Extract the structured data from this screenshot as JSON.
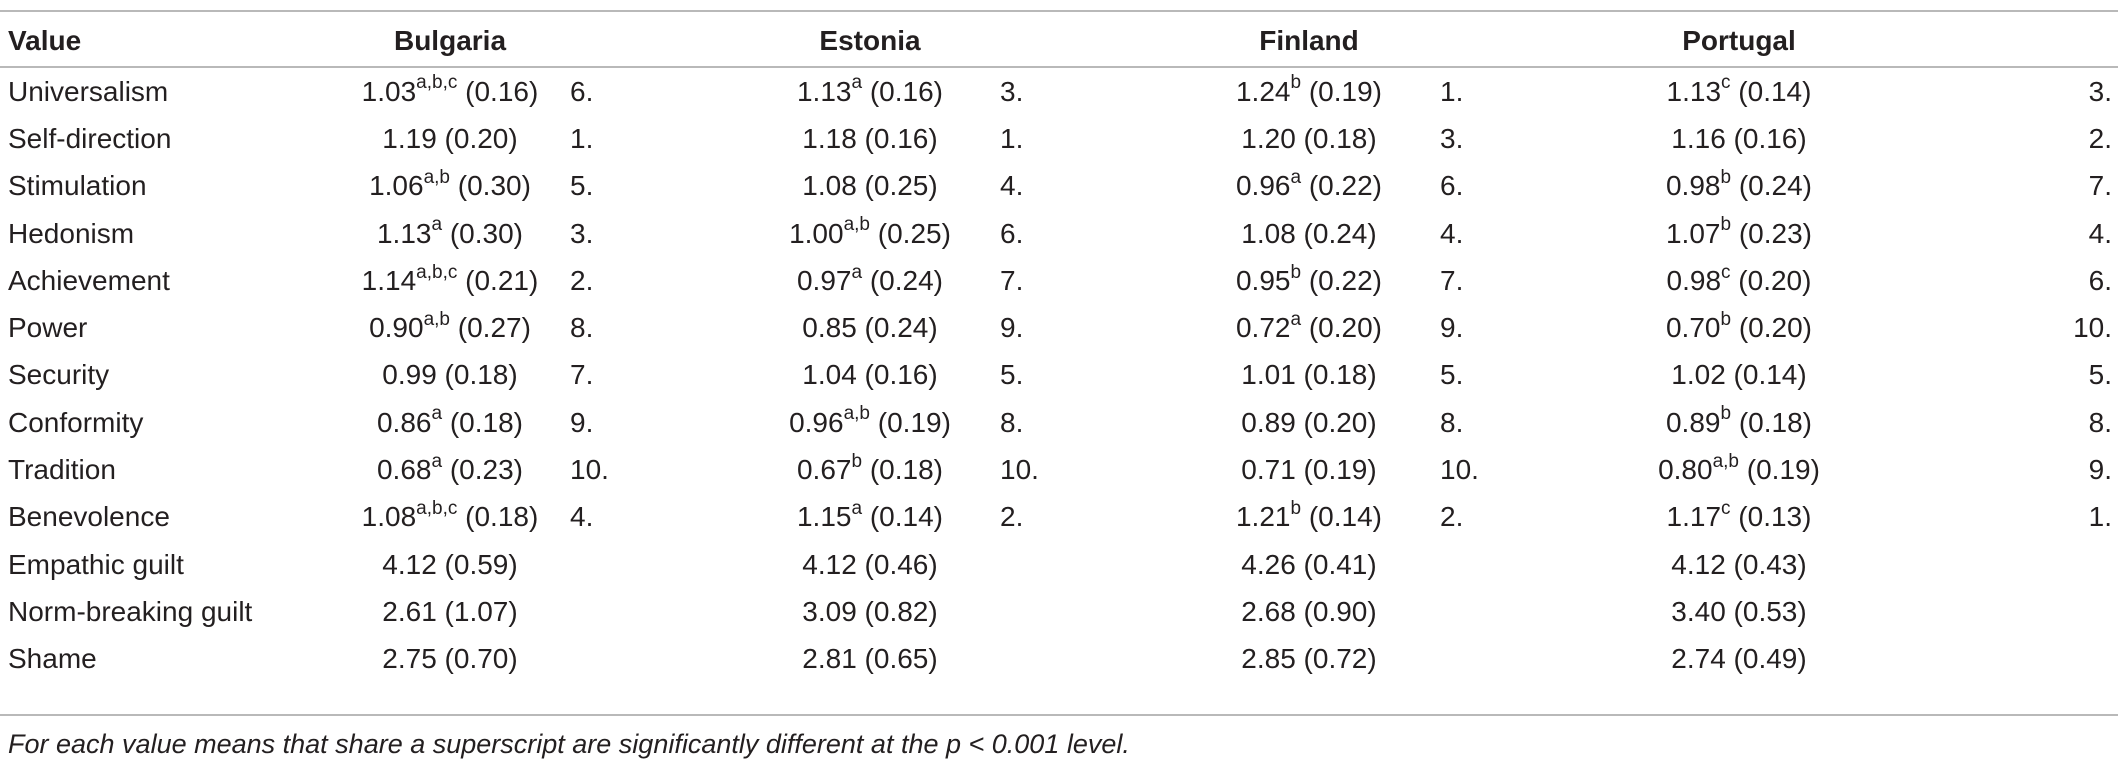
{
  "table": {
    "header": {
      "value": "Value",
      "countries": [
        "Bulgaria",
        "Estonia",
        "Finland",
        "Portugal"
      ]
    },
    "rows": [
      {
        "label": "Universalism",
        "cells": [
          {
            "mean": "1.03",
            "sup": "a,b,c",
            "sd": " (0.16)",
            "rank": "6."
          },
          {
            "mean": "1.13",
            "sup": "a",
            "sd": " (0.16)",
            "rank": "3."
          },
          {
            "mean": "1.24",
            "sup": "b",
            "sd": " (0.19)",
            "rank": "1."
          },
          {
            "mean": "1.13",
            "sup": "c",
            "sd": " (0.14)",
            "rank": "3."
          }
        ]
      },
      {
        "label": "Self-direction",
        "cells": [
          {
            "mean": "1.19",
            "sup": "",
            "sd": " (0.20)",
            "rank": "1."
          },
          {
            "mean": "1.18",
            "sup": "",
            "sd": " (0.16)",
            "rank": "1."
          },
          {
            "mean": "1.20",
            "sup": "",
            "sd": " (0.18)",
            "rank": "3."
          },
          {
            "mean": "1.16",
            "sup": "",
            "sd": " (0.16)",
            "rank": "2."
          }
        ]
      },
      {
        "label": "Stimulation",
        "cells": [
          {
            "mean": "1.06",
            "sup": "a,b",
            "sd": " (0.30)",
            "rank": "5."
          },
          {
            "mean": "1.08",
            "sup": "",
            "sd": " (0.25)",
            "rank": "4."
          },
          {
            "mean": "0.96",
            "sup": "a",
            "sd": " (0.22)",
            "rank": "6."
          },
          {
            "mean": "0.98",
            "sup": "b",
            "sd": " (0.24)",
            "rank": "7."
          }
        ]
      },
      {
        "label": "Hedonism",
        "cells": [
          {
            "mean": "1.13",
            "sup": "a",
            "sd": " (0.30)",
            "rank": "3."
          },
          {
            "mean": "1.00",
            "sup": "a,b",
            "sd": " (0.25)",
            "rank": "6."
          },
          {
            "mean": "1.08",
            "sup": "",
            "sd": " (0.24)",
            "rank": "4."
          },
          {
            "mean": "1.07",
            "sup": "b",
            "sd": " (0.23)",
            "rank": "4."
          }
        ]
      },
      {
        "label": "Achievement",
        "cells": [
          {
            "mean": "1.14",
            "sup": "a,b,c",
            "sd": " (0.21)",
            "rank": "2."
          },
          {
            "mean": "0.97",
            "sup": "a",
            "sd": " (0.24)",
            "rank": "7."
          },
          {
            "mean": "0.95",
            "sup": "b",
            "sd": " (0.22)",
            "rank": "7."
          },
          {
            "mean": "0.98",
            "sup": "c",
            "sd": " (0.20)",
            "rank": "6."
          }
        ]
      },
      {
        "label": "Power",
        "cells": [
          {
            "mean": "0.90",
            "sup": "a,b",
            "sd": " (0.27)",
            "rank": "8."
          },
          {
            "mean": "0.85",
            "sup": "",
            "sd": " (0.24)",
            "rank": "9."
          },
          {
            "mean": "0.72",
            "sup": "a",
            "sd": " (0.20)",
            "rank": "9."
          },
          {
            "mean": "0.70",
            "sup": "b",
            "sd": " (0.20)",
            "rank": "10."
          }
        ]
      },
      {
        "label": "Security",
        "cells": [
          {
            "mean": "0.99",
            "sup": "",
            "sd": " (0.18)",
            "rank": "7."
          },
          {
            "mean": "1.04",
            "sup": "",
            "sd": " (0.16)",
            "rank": "5."
          },
          {
            "mean": "1.01",
            "sup": "",
            "sd": " (0.18)",
            "rank": "5."
          },
          {
            "mean": "1.02",
            "sup": "",
            "sd": " (0.14)",
            "rank": "5."
          }
        ]
      },
      {
        "label": "Conformity",
        "cells": [
          {
            "mean": "0.86",
            "sup": "a",
            "sd": " (0.18)",
            "rank": "9."
          },
          {
            "mean": "0.96",
            "sup": "a,b",
            "sd": " (0.19)",
            "rank": "8."
          },
          {
            "mean": "0.89",
            "sup": "",
            "sd": " (0.20)",
            "rank": "8."
          },
          {
            "mean": "0.89",
            "sup": "b",
            "sd": " (0.18)",
            "rank": "8."
          }
        ]
      },
      {
        "label": "Tradition",
        "cells": [
          {
            "mean": "0.68",
            "sup": "a",
            "sd": " (0.23)",
            "rank": "10."
          },
          {
            "mean": "0.67",
            "sup": "b",
            "sd": " (0.18)",
            "rank": "10."
          },
          {
            "mean": "0.71",
            "sup": "",
            "sd": " (0.19)",
            "rank": "10."
          },
          {
            "mean": "0.80",
            "sup": "a,b",
            "sd": " (0.19)",
            "rank": "9."
          }
        ]
      },
      {
        "label": "Benevolence",
        "cells": [
          {
            "mean": "1.08",
            "sup": "a,b,c",
            "sd": " (0.18)",
            "rank": "4."
          },
          {
            "mean": "1.15",
            "sup": "a",
            "sd": " (0.14)",
            "rank": "2."
          },
          {
            "mean": "1.21",
            "sup": "b",
            "sd": " (0.14)",
            "rank": "2."
          },
          {
            "mean": "1.17",
            "sup": "c",
            "sd": " (0.13)",
            "rank": "1."
          }
        ]
      },
      {
        "label": "Empathic guilt",
        "cells": [
          {
            "mean": "4.12",
            "sup": "",
            "sd": " (0.59)",
            "rank": ""
          },
          {
            "mean": "4.12",
            "sup": "",
            "sd": " (0.46)",
            "rank": ""
          },
          {
            "mean": "4.26",
            "sup": "",
            "sd": " (0.41)",
            "rank": ""
          },
          {
            "mean": "4.12",
            "sup": "",
            "sd": " (0.43)",
            "rank": ""
          }
        ]
      },
      {
        "label": "Norm-breaking guilt",
        "cells": [
          {
            "mean": "2.61",
            "sup": "",
            "sd": " (1.07)",
            "rank": ""
          },
          {
            "mean": "3.09",
            "sup": "",
            "sd": " (0.82)",
            "rank": ""
          },
          {
            "mean": "2.68",
            "sup": "",
            "sd": " (0.90)",
            "rank": ""
          },
          {
            "mean": "3.40",
            "sup": "",
            "sd": " (0.53)",
            "rank": ""
          }
        ]
      },
      {
        "label": "Shame",
        "cells": [
          {
            "mean": "2.75",
            "sup": "",
            "sd": " (0.70)",
            "rank": ""
          },
          {
            "mean": "2.81",
            "sup": "",
            "sd": " (0.65)",
            "rank": ""
          },
          {
            "mean": "2.85",
            "sup": "",
            "sd": " (0.72)",
            "rank": ""
          },
          {
            "mean": "2.74",
            "sup": "",
            "sd": " (0.49)",
            "rank": ""
          }
        ]
      }
    ],
    "footnote": "For each value means that share a superscript are significantly different at the p < 0.001 level."
  },
  "colors": {
    "text": "#231f20",
    "rule": "#b9b9b9"
  }
}
